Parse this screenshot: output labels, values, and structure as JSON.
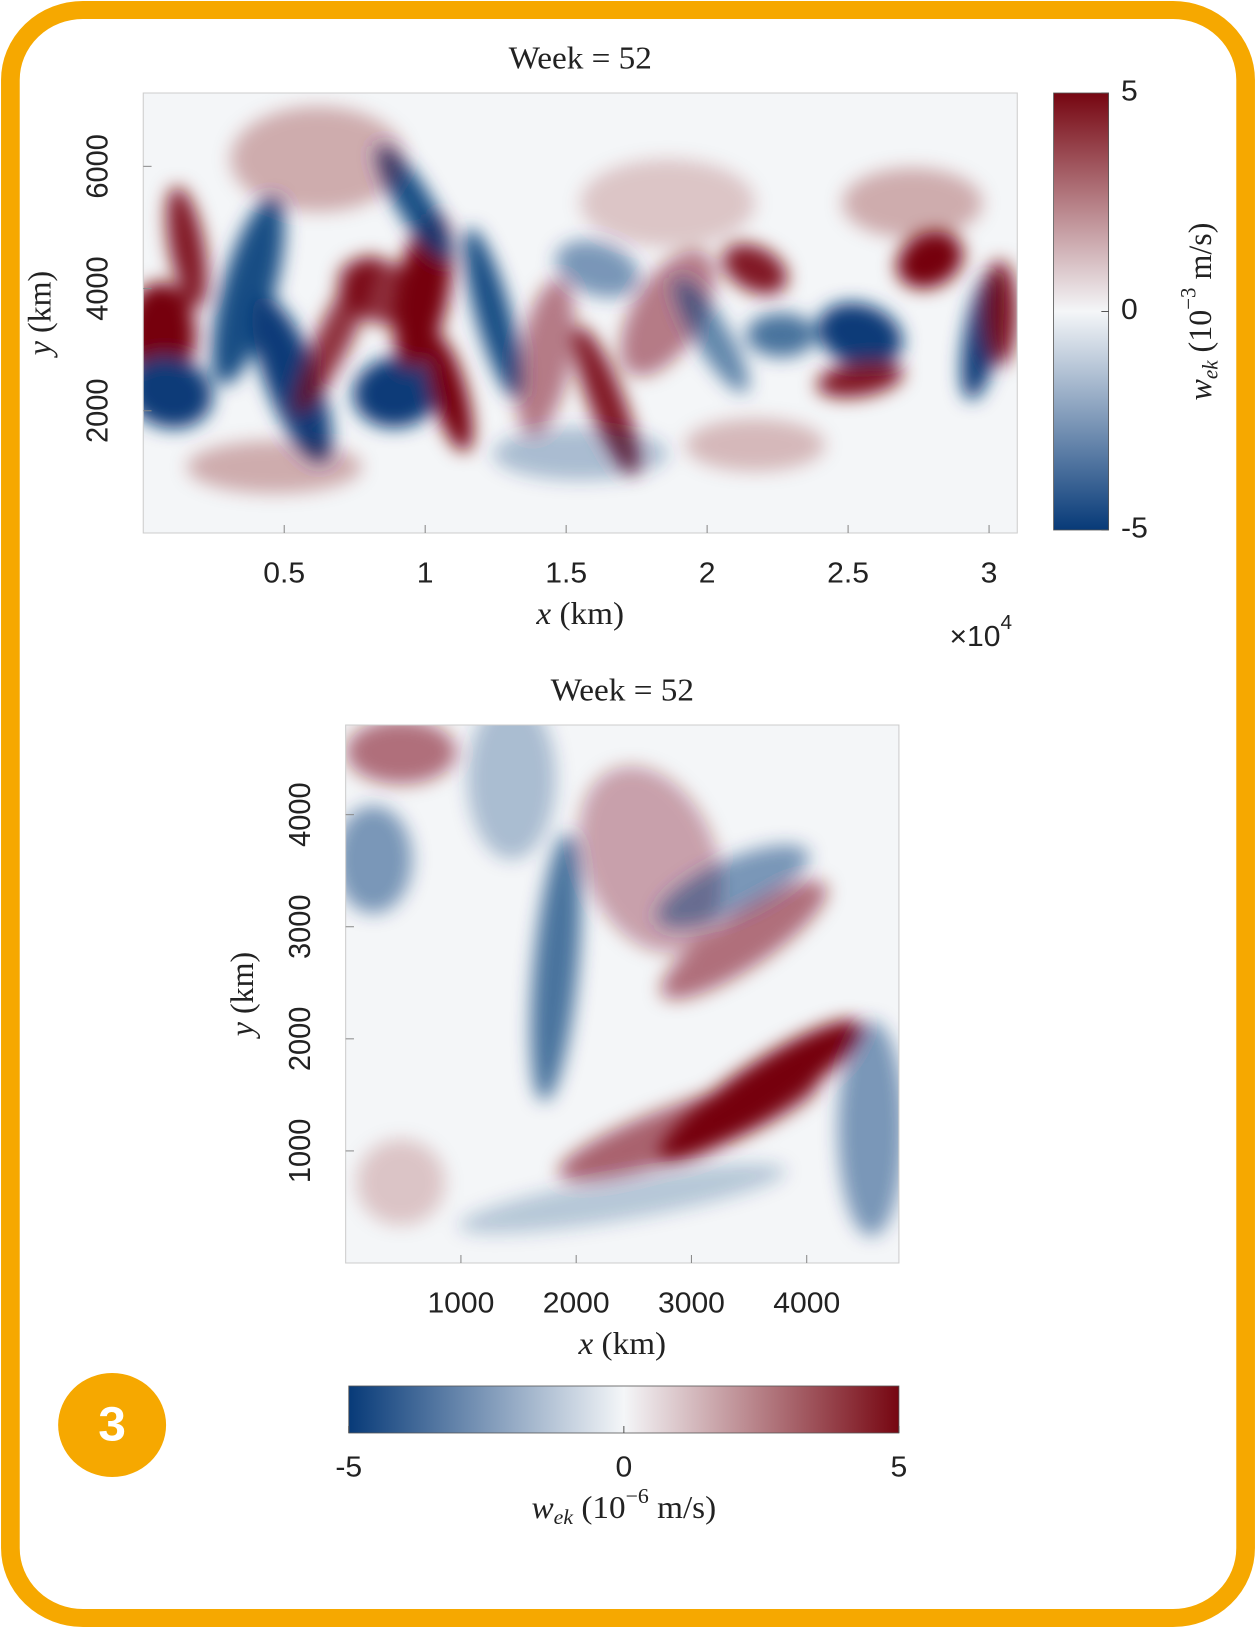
{
  "chart_data": [
    {
      "type": "heatmap",
      "title": "Week = 52",
      "x_label": {
        "var": "x",
        "unit": "(km)"
      },
      "y_label": {
        "var": "y",
        "unit": "(km)"
      },
      "x_multiplier": {
        "base": "×10",
        "sup": "4"
      },
      "xlim": [
        0,
        3.1
      ],
      "xticks": [
        0.5,
        1,
        1.5,
        2,
        2.5,
        3
      ],
      "ylim": [
        0,
        7200
      ],
      "yticks": [
        2000,
        4000,
        6000
      ],
      "colorbar_location": "right",
      "colormap": [
        "#073a78",
        "#f4f6f8",
        "#760611"
      ],
      "clim": [
        -5,
        5
      ],
      "cticks": [
        -5,
        0,
        5
      ],
      "colorbar_label": {
        "var": "w",
        "sub": "ek",
        "pre": "(10",
        "sup": "−3",
        "post": " m/s)"
      }
    },
    {
      "type": "heatmap",
      "title": "Week = 52",
      "x_label": {
        "var": "x",
        "unit": "(km)"
      },
      "y_label": {
        "var": "y",
        "unit": "(km)"
      },
      "xlim": [
        0,
        4800
      ],
      "xticks": [
        1000,
        2000,
        3000,
        4000
      ],
      "ylim": [
        0,
        4800
      ],
      "yticks": [
        1000,
        2000,
        3000,
        4000
      ],
      "colorbar_location": "bottom",
      "colormap": [
        "#073a78",
        "#f4f6f8",
        "#760611"
      ],
      "clim": [
        -5,
        5
      ],
      "cticks": [
        -5,
        0,
        5
      ],
      "colorbar_label": {
        "var": "w",
        "sub": "ek",
        "pre": "(10",
        "sup": "−6",
        "post": " m/s)"
      }
    }
  ],
  "badge": "3"
}
